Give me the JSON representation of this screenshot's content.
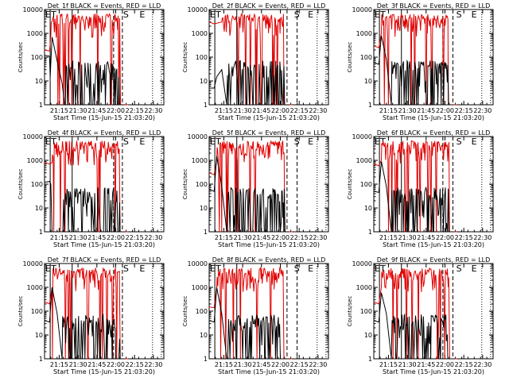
{
  "chart_data": {
    "type": "line",
    "xlabel": "Start Time (15-Jun-15 21:03:20)",
    "ylabel": "Counts/sec",
    "x_tick_labels": [
      "21:15",
      "21:30",
      "21:45",
      "22:00",
      "22:15",
      "22:30"
    ],
    "x_tick_minutes": [
      11.67,
      26.67,
      41.67,
      56.67,
      71.67,
      86.67
    ],
    "xlim_minutes": [
      0,
      95
    ],
    "y_scale": "log",
    "ylim": [
      1,
      10000
    ],
    "y_tick_labels": [
      "1",
      "10",
      "100",
      "1000",
      "10000"
    ],
    "y_tick_values": [
      1,
      10,
      100,
      1000,
      10000
    ],
    "series_legend": "BLACK = Events, RED = LLD",
    "colors": {
      "events": "#000000",
      "lld": "#e00000",
      "axes": "#000000"
    },
    "panels": [
      {
        "title": "Det_1f BLACK = Events, RED = LLD",
        "markers": [
          {
            "label": "E",
            "minute": 0.0
          },
          {
            "label": "T",
            "minute": 4.5
          },
          {
            "label": "S",
            "minute": 62.0
          },
          {
            "label": "E",
            "minute": 75.0
          }
        ],
        "solid_lines_minutes": [
          4.5,
          22.0
        ],
        "dashed_lines_minutes": [
          55.0,
          62.0
        ],
        "dotted_lines_minutes": [
          0.0,
          86.0,
          93.0
        ],
        "events_base": [
          [
            0,
            120
          ],
          [
            4,
            110
          ],
          [
            4.5,
            15
          ],
          [
            6,
            700
          ],
          [
            10,
            70
          ],
          [
            14,
            8
          ],
          [
            16,
            1
          ]
        ],
        "lld_base": [
          [
            0,
            200
          ],
          [
            4,
            180
          ],
          [
            5,
            800
          ]
        ]
      },
      {
        "title": "Det_2f BLACK = Events, RED = LLD",
        "markers": [
          {
            "label": "E",
            "minute": 0.0
          },
          {
            "label": "T",
            "minute": 4.5
          },
          {
            "label": "S",
            "minute": 67.0
          },
          {
            "label": "E",
            "minute": 78.0
          }
        ],
        "solid_lines_minutes": [
          4.5,
          22.0
        ],
        "dashed_lines_minutes": [
          62.0,
          70.0
        ],
        "dotted_lines_minutes": [
          0.0,
          86.0,
          93.0
        ],
        "events_base": [
          [
            0,
            5
          ],
          [
            4,
            5
          ],
          [
            6,
            15
          ],
          [
            10,
            30
          ],
          [
            14,
            1
          ]
        ],
        "lld_base": [
          [
            0,
            3000
          ],
          [
            4,
            2500
          ],
          [
            10,
            3000
          ]
        ]
      },
      {
        "title": "Det_3f BLACK = Events, RED = LLD",
        "markers": [
          {
            "label": "E",
            "minute": 0.0
          },
          {
            "label": "T",
            "minute": 4.5
          },
          {
            "label": "S",
            "minute": 65.0
          },
          {
            "label": "E",
            "minute": 77.0
          }
        ],
        "solid_lines_minutes": [
          4.5,
          22.0
        ],
        "dashed_lines_minutes": [
          55.0,
          63.0
        ],
        "dotted_lines_minutes": [
          0.0,
          86.0,
          93.0
        ],
        "events_base": [
          [
            0,
            60
          ],
          [
            4,
            50
          ],
          [
            6,
            800
          ],
          [
            10,
            80
          ],
          [
            14,
            1
          ]
        ],
        "lld_base": [
          [
            0,
            300
          ],
          [
            4,
            250
          ],
          [
            6,
            1000
          ]
        ]
      },
      {
        "title": "Det_4f BLACK = Events, RED = LLD",
        "markers": [
          {
            "label": "E",
            "minute": 0.0
          },
          {
            "label": "T",
            "minute": 4.5
          },
          {
            "label": "S",
            "minute": 62.0
          },
          {
            "label": "E",
            "minute": 75.0
          }
        ],
        "solid_lines_minutes": [
          4.5,
          22.0
        ],
        "dashed_lines_minutes": [
          55.0,
          62.0
        ],
        "dotted_lines_minutes": [
          0.0,
          86.0,
          93.0
        ],
        "events_base": [
          [
            0,
            120
          ],
          [
            4,
            130
          ],
          [
            5,
            100
          ],
          [
            6,
            1
          ],
          [
            14,
            1
          ]
        ],
        "lld_base": [
          [
            0,
            800
          ],
          [
            4,
            700
          ],
          [
            6,
            800
          ]
        ]
      },
      {
        "title": "Det_5f BLACK = Events, RED = LLD",
        "markers": [
          {
            "label": "E",
            "minute": 0.0
          },
          {
            "label": "T",
            "minute": 4.5
          },
          {
            "label": "S",
            "minute": 67.0
          },
          {
            "label": "E",
            "minute": 78.0
          }
        ],
        "solid_lines_minutes": [
          4.5,
          22.0
        ],
        "dashed_lines_minutes": [
          62.0,
          70.0
        ],
        "dotted_lines_minutes": [
          0.0,
          86.0,
          93.0
        ],
        "events_base": [
          [
            0,
            60
          ],
          [
            4,
            50
          ],
          [
            6,
            1500
          ],
          [
            10,
            80
          ],
          [
            14,
            1
          ]
        ],
        "lld_base": [
          [
            0,
            300
          ],
          [
            4,
            250
          ],
          [
            6,
            1000
          ]
        ]
      },
      {
        "title": "Det_6f BLACK = Events, RED = LLD",
        "markers": [
          {
            "label": "E",
            "minute": 0.0
          },
          {
            "label": "T",
            "minute": 4.5
          },
          {
            "label": "S",
            "minute": 65.0
          },
          {
            "label": "E",
            "minute": 77.0
          }
        ],
        "solid_lines_minutes": [
          4.5,
          22.0
        ],
        "dashed_lines_minutes": [
          55.0,
          63.0
        ],
        "dotted_lines_minutes": [
          0.0,
          86.0,
          93.0
        ],
        "events_base": [
          [
            0,
            50
          ],
          [
            4,
            45
          ],
          [
            6,
            900
          ],
          [
            10,
            80
          ],
          [
            14,
            1
          ]
        ],
        "lld_base": [
          [
            0,
            700
          ],
          [
            4,
            600
          ],
          [
            6,
            1000
          ]
        ]
      },
      {
        "title": "Det_7f BLACK = Events, RED = LLD",
        "markers": [
          {
            "label": "E",
            "minute": 0.0
          },
          {
            "label": "T",
            "minute": 4.5
          },
          {
            "label": "S",
            "minute": 62.0
          },
          {
            "label": "E",
            "minute": 75.0
          }
        ],
        "solid_lines_minutes": [
          4.5,
          22.0
        ],
        "dashed_lines_minutes": [
          55.0,
          62.0
        ],
        "dotted_lines_minutes": [
          0.0,
          86.0,
          93.0
        ],
        "events_base": [
          [
            0,
            40
          ],
          [
            4,
            35
          ],
          [
            6,
            1000
          ],
          [
            10,
            80
          ],
          [
            14,
            1
          ]
        ],
        "lld_base": [
          [
            0,
            250
          ],
          [
            4,
            200
          ],
          [
            6,
            1000
          ]
        ]
      },
      {
        "title": "Det_8f BLACK = Events, RED = LLD",
        "markers": [
          {
            "label": "E",
            "minute": 0.0
          },
          {
            "label": "T",
            "minute": 4.5
          },
          {
            "label": "S",
            "minute": 67.0
          },
          {
            "label": "E",
            "minute": 78.0
          }
        ],
        "solid_lines_minutes": [
          4.5,
          22.0
        ],
        "dashed_lines_minutes": [
          62.0,
          70.0
        ],
        "dotted_lines_minutes": [
          0.0,
          86.0,
          93.0
        ],
        "events_base": [
          [
            0,
            40
          ],
          [
            4,
            35
          ],
          [
            6,
            1000
          ],
          [
            10,
            80
          ],
          [
            14,
            1
          ]
        ],
        "lld_base": [
          [
            0,
            150
          ],
          [
            4,
            140
          ],
          [
            6,
            1000
          ]
        ]
      },
      {
        "title": "Det_9f BLACK = Events, RED = LLD",
        "markers": [
          {
            "label": "E",
            "minute": 0.0
          },
          {
            "label": "T",
            "minute": 4.5
          },
          {
            "label": "S",
            "minute": 65.0
          },
          {
            "label": "E",
            "minute": 77.0
          }
        ],
        "solid_lines_minutes": [
          4.5,
          22.0
        ],
        "dashed_lines_minutes": [
          55.0,
          63.0
        ],
        "dotted_lines_minutes": [
          0.0,
          86.0,
          93.0
        ],
        "events_base": [
          [
            0,
            40
          ],
          [
            4,
            35
          ],
          [
            6,
            600
          ],
          [
            10,
            80
          ],
          [
            14,
            1
          ]
        ],
        "lld_base": [
          [
            0,
            250
          ],
          [
            4,
            200
          ],
          [
            6,
            1000
          ]
        ]
      }
    ]
  }
}
